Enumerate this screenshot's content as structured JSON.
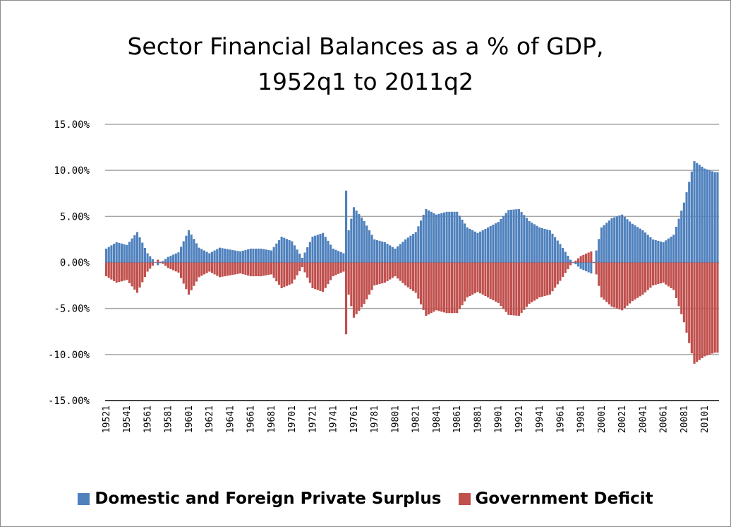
{
  "chart_data": {
    "type": "bar",
    "title_lines": [
      "Sector Financial Balances as a % of GDP,",
      "1952q1 to 2011q2"
    ],
    "y_ticks": [
      "15.00%",
      "10.00%",
      "5.00%",
      "0.00%",
      "-5.00%",
      "-10.00%",
      "-15.00%"
    ],
    "ylim": [
      -15,
      15
    ],
    "x_tick_labels": [
      "19521",
      "19541",
      "19561",
      "19581",
      "19601",
      "19621",
      "19641",
      "19661",
      "19681",
      "19701",
      "19721",
      "19741",
      "19761",
      "19781",
      "19801",
      "19821",
      "19841",
      "19861",
      "19881",
      "19901",
      "19921",
      "19941",
      "19961",
      "19981",
      "20001",
      "20021",
      "20041",
      "20061",
      "20081",
      "20101"
    ],
    "grid": true,
    "legend_position": "bottom",
    "colors": {
      "private": "#4f81bd",
      "government": "#c0504d",
      "grid": "#a6a6a6"
    },
    "series": [
      {
        "name": "Domestic and Foreign Private Surplus",
        "year_start": 1952,
        "year_end": 2011.25,
        "annual_anchor_values": [
          1.5,
          2.2,
          1.9,
          3.3,
          1.0,
          -0.3,
          0.6,
          1.1,
          3.5,
          1.6,
          1.0,
          1.6,
          1.4,
          1.2,
          1.5,
          1.5,
          1.3,
          2.8,
          2.3,
          0.5,
          2.8,
          3.2,
          1.5,
          1.0,
          6.0,
          4.5,
          2.5,
          2.2,
          1.5,
          2.5,
          3.3,
          5.8,
          5.2,
          5.5,
          5.5,
          3.8,
          3.2,
          3.8,
          4.4,
          5.7,
          5.8,
          4.5,
          3.8,
          3.5,
          2.0,
          0.3,
          -0.7,
          -1.2,
          3.8,
          4.8,
          5.2,
          4.2,
          3.5,
          2.5,
          2.2,
          3.0,
          6.5,
          11.0,
          10.2,
          9.8
        ]
      },
      {
        "name": "Government Deficit",
        "year_start": 1952,
        "year_end": 2011.25,
        "annual_anchor_values": [
          -1.5,
          -2.2,
          -1.9,
          -3.3,
          -1.0,
          0.3,
          -0.6,
          -1.1,
          -3.5,
          -1.6,
          -1.0,
          -1.6,
          -1.4,
          -1.2,
          -1.5,
          -1.5,
          -1.3,
          -2.8,
          -2.3,
          -0.5,
          -2.8,
          -3.2,
          -1.5,
          -1.0,
          -6.0,
          -4.5,
          -2.5,
          -2.2,
          -1.5,
          -2.5,
          -3.3,
          -5.8,
          -5.2,
          -5.5,
          -5.5,
          -3.8,
          -3.2,
          -3.8,
          -4.4,
          -5.7,
          -5.8,
          -4.5,
          -3.8,
          -3.5,
          -2.0,
          -0.3,
          0.7,
          1.2,
          -3.8,
          -4.8,
          -5.2,
          -4.2,
          -3.5,
          -2.5,
          -2.2,
          -3.0,
          -6.5,
          -11.0,
          -10.2,
          -9.8
        ]
      }
    ],
    "spikes": [
      {
        "year": 1975,
        "quarter": 2,
        "value": 7.8
      }
    ]
  }
}
